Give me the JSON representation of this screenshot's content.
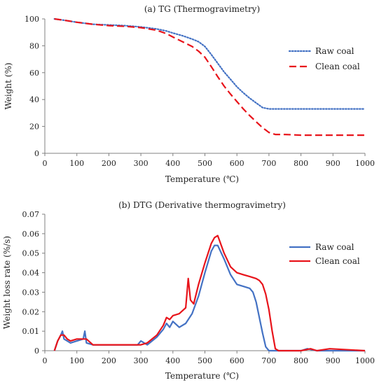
{
  "chart_data": [
    {
      "type": "line",
      "title": "(a) TG (Thermogravimetry)",
      "xlabel": "Temperature (℃)",
      "ylabel": "Weight (%)",
      "xlim": [
        0,
        1000
      ],
      "ylim": [
        0,
        100
      ],
      "xticks": [
        0,
        100,
        200,
        300,
        400,
        500,
        600,
        700,
        800,
        900,
        1000
      ],
      "yticks": [
        0,
        20,
        40,
        60,
        80,
        100
      ],
      "grid": false,
      "legend_position": "right",
      "series": [
        {
          "name": "Raw coal",
          "color": "#4472C4",
          "style": "dotted",
          "x": [
            30,
            60,
            100,
            150,
            200,
            250,
            300,
            350,
            380,
            400,
            430,
            460,
            480,
            500,
            520,
            540,
            560,
            580,
            600,
            620,
            640,
            660,
            680,
            700,
            750,
            800,
            850,
            900,
            950,
            1000
          ],
          "y": [
            100,
            99,
            97.5,
            96,
            95.5,
            95,
            94,
            92.5,
            91,
            89.5,
            87.5,
            85,
            83,
            79.5,
            73.5,
            67,
            60.5,
            55,
            49.5,
            45,
            41,
            37.5,
            34,
            33,
            33,
            33,
            33,
            33,
            33,
            33
          ]
        },
        {
          "name": "Clean coal",
          "color": "#E8141B",
          "style": "dashed",
          "x": [
            30,
            60,
            100,
            150,
            200,
            250,
            300,
            350,
            380,
            400,
            430,
            460,
            480,
            500,
            520,
            540,
            560,
            580,
            600,
            620,
            640,
            660,
            680,
            700,
            720,
            750,
            800,
            850,
            900,
            950,
            1000
          ],
          "y": [
            100,
            99,
            97.5,
            96,
            95,
            94.5,
            93.5,
            91.5,
            89,
            86.5,
            83,
            79.5,
            76,
            71.5,
            64.5,
            57,
            50,
            44,
            38.5,
            33,
            28,
            23.5,
            19,
            15.5,
            14,
            14,
            13.5,
            13.5,
            13.5,
            13.5,
            13.5
          ]
        }
      ]
    },
    {
      "type": "line",
      "title": "(b) DTG (Derivative thermogravimetry)",
      "xlabel": "Temperature (℃)",
      "ylabel": "Weight loss rate (%/s)",
      "xlim": [
        0,
        1000
      ],
      "ylim": [
        0,
        0.07
      ],
      "xticks": [
        0,
        100,
        200,
        300,
        400,
        500,
        600,
        700,
        800,
        900,
        1000
      ],
      "yticks": [
        0,
        0.01,
        0.02,
        0.03,
        0.04,
        0.05,
        0.06,
        0.07
      ],
      "ytick_labels": [
        "0",
        "0.01",
        "0.02",
        "0.03",
        "0.04",
        "0.05",
        "0.06",
        "0.07"
      ],
      "grid": false,
      "legend_position": "right",
      "series": [
        {
          "name": "Raw coal",
          "color": "#4472C4",
          "style": "solid",
          "x": [
            30,
            40,
            50,
            55,
            60,
            70,
            80,
            100,
            120,
            125,
            130,
            150,
            200,
            250,
            290,
            300,
            320,
            350,
            370,
            380,
            390,
            400,
            420,
            440,
            460,
            480,
            500,
            520,
            530,
            540,
            560,
            580,
            600,
            620,
            640,
            650,
            660,
            670,
            680,
            690,
            700,
            710,
            750,
            800,
            820,
            850,
            900,
            1000
          ],
          "y": [
            0,
            0.005,
            0.008,
            0.01,
            0.006,
            0.005,
            0.004,
            0.005,
            0.006,
            0.01,
            0.004,
            0.003,
            0.003,
            0.003,
            0.003,
            0.005,
            0.003,
            0.007,
            0.011,
            0.014,
            0.012,
            0.015,
            0.012,
            0.014,
            0.019,
            0.028,
            0.04,
            0.051,
            0.054,
            0.054,
            0.047,
            0.039,
            0.034,
            0.033,
            0.032,
            0.03,
            0.025,
            0.017,
            0.009,
            0.002,
            0,
            0,
            0,
            0,
            0.001,
            0,
            0,
            0
          ]
        },
        {
          "name": "Clean coal",
          "color": "#E8141B",
          "style": "solid",
          "x": [
            30,
            40,
            50,
            60,
            70,
            80,
            100,
            120,
            130,
            150,
            200,
            250,
            300,
            320,
            350,
            370,
            380,
            390,
            400,
            420,
            440,
            448,
            455,
            465,
            480,
            500,
            520,
            530,
            540,
            560,
            580,
            600,
            620,
            640,
            660,
            670,
            680,
            690,
            700,
            710,
            720,
            730,
            750,
            800,
            830,
            850,
            890,
            1000
          ],
          "y": [
            0,
            0.005,
            0.008,
            0.008,
            0.006,
            0.005,
            0.006,
            0.006,
            0.006,
            0.003,
            0.003,
            0.003,
            0.003,
            0.004,
            0.008,
            0.013,
            0.017,
            0.016,
            0.018,
            0.019,
            0.022,
            0.037,
            0.026,
            0.024,
            0.034,
            0.045,
            0.055,
            0.058,
            0.059,
            0.05,
            0.043,
            0.04,
            0.039,
            0.038,
            0.037,
            0.036,
            0.034,
            0.029,
            0.021,
            0.01,
            0.001,
            0,
            0,
            0,
            0.001,
            0,
            0.001,
            0
          ]
        }
      ]
    }
  ]
}
